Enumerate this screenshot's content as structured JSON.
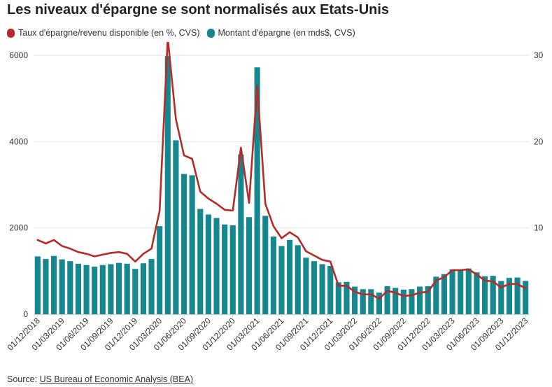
{
  "title": "Les niveaux d'épargne se sont normalisés aux Etats-Unis",
  "source": {
    "prefix": "Source: ",
    "link_text": "US Bureau of Economic Analysis (BEA)"
  },
  "colors": {
    "bar": "#17878f",
    "line": "#b52b27",
    "grid": "#e6e6e6",
    "text": "#333333"
  },
  "chart_data": {
    "type": "bar+line",
    "categories": [
      "01/12/2018",
      "01/01/2019",
      "01/02/2019",
      "01/03/2019",
      "01/04/2019",
      "01/05/2019",
      "01/06/2019",
      "01/07/2019",
      "01/08/2019",
      "01/09/2019",
      "01/10/2019",
      "01/11/2019",
      "01/12/2019",
      "01/01/2020",
      "01/02/2020",
      "01/03/2020",
      "01/04/2020",
      "01/05/2020",
      "01/06/2020",
      "01/07/2020",
      "01/08/2020",
      "01/09/2020",
      "01/10/2020",
      "01/11/2020",
      "01/12/2020",
      "01/01/2021",
      "01/02/2021",
      "01/03/2021",
      "01/04/2021",
      "01/05/2021",
      "01/06/2021",
      "01/07/2021",
      "01/08/2021",
      "01/09/2021",
      "01/10/2021",
      "01/11/2021",
      "01/12/2021",
      "01/01/2022",
      "01/02/2022",
      "01/03/2022",
      "01/04/2022",
      "01/05/2022",
      "01/06/2022",
      "01/07/2022",
      "01/08/2022",
      "01/09/2022",
      "01/10/2022",
      "01/11/2022",
      "01/12/2022",
      "01/01/2023",
      "01/02/2023",
      "01/03/2023",
      "01/04/2023",
      "01/05/2023",
      "01/06/2023",
      "01/07/2023",
      "01/08/2023",
      "01/09/2023",
      "01/10/2023",
      "01/11/2023",
      "01/12/2023"
    ],
    "tick_labels": [
      "01/12/2018",
      "01/03/2019",
      "01/06/2019",
      "01/09/2019",
      "01/12/2019",
      "01/03/2020",
      "01/06/2020",
      "01/09/2020",
      "01/12/2020",
      "01/03/2021",
      "01/06/2021",
      "01/09/2021",
      "01/12/2021",
      "01/03/2022",
      "01/06/2022",
      "01/09/2022",
      "01/12/2022",
      "01/03/2023",
      "01/06/2023",
      "01/09/2023",
      "01/12/2023"
    ],
    "series": [
      {
        "name": "Montant d'épargne (en mds$, CVS)",
        "type": "bar",
        "axis": "left",
        "values": [
          1340,
          1280,
          1350,
          1270,
          1230,
          1170,
          1140,
          1100,
          1140,
          1160,
          1190,
          1170,
          1050,
          1180,
          1280,
          2040,
          5980,
          4030,
          3250,
          3220,
          2440,
          2310,
          2230,
          2080,
          2060,
          3700,
          2250,
          5720,
          2280,
          1800,
          1580,
          1720,
          1600,
          1310,
          1230,
          1160,
          1120,
          740,
          750,
          640,
          580,
          580,
          500,
          650,
          610,
          570,
          580,
          640,
          650,
          870,
          930,
          1040,
          1040,
          1060,
          970,
          880,
          890,
          770,
          840,
          850,
          770
        ]
      },
      {
        "name": "Taux d'épargne/revenu disponible (en %, CVS)",
        "type": "line",
        "axis": "right",
        "values": [
          8.6,
          8.2,
          8.6,
          7.9,
          7.6,
          7.2,
          7.0,
          6.7,
          6.9,
          7.1,
          7.2,
          7.0,
          6.1,
          7.0,
          7.6,
          12.0,
          32.0,
          22.6,
          18.4,
          18.0,
          14.2,
          13.4,
          12.8,
          12.1,
          12.0,
          19.3,
          12.9,
          26.5,
          12.8,
          10.2,
          8.8,
          9.5,
          8.9,
          7.3,
          6.8,
          6.3,
          6.1,
          3.3,
          3.3,
          2.6,
          2.3,
          2.3,
          1.8,
          2.7,
          2.5,
          2.1,
          2.2,
          2.5,
          2.6,
          3.9,
          4.3,
          5.1,
          5.1,
          5.2,
          4.6,
          3.9,
          3.8,
          3.1,
          3.5,
          3.5,
          3.0
        ]
      }
    ],
    "y_left": {
      "lim": [
        0,
        6000
      ],
      "ticks": [
        0,
        2000,
        4000,
        6000
      ]
    },
    "y_right": {
      "lim": [
        0,
        30
      ],
      "ticks": [
        10,
        20,
        30
      ]
    },
    "grid": true,
    "legend_position": "top-left"
  }
}
